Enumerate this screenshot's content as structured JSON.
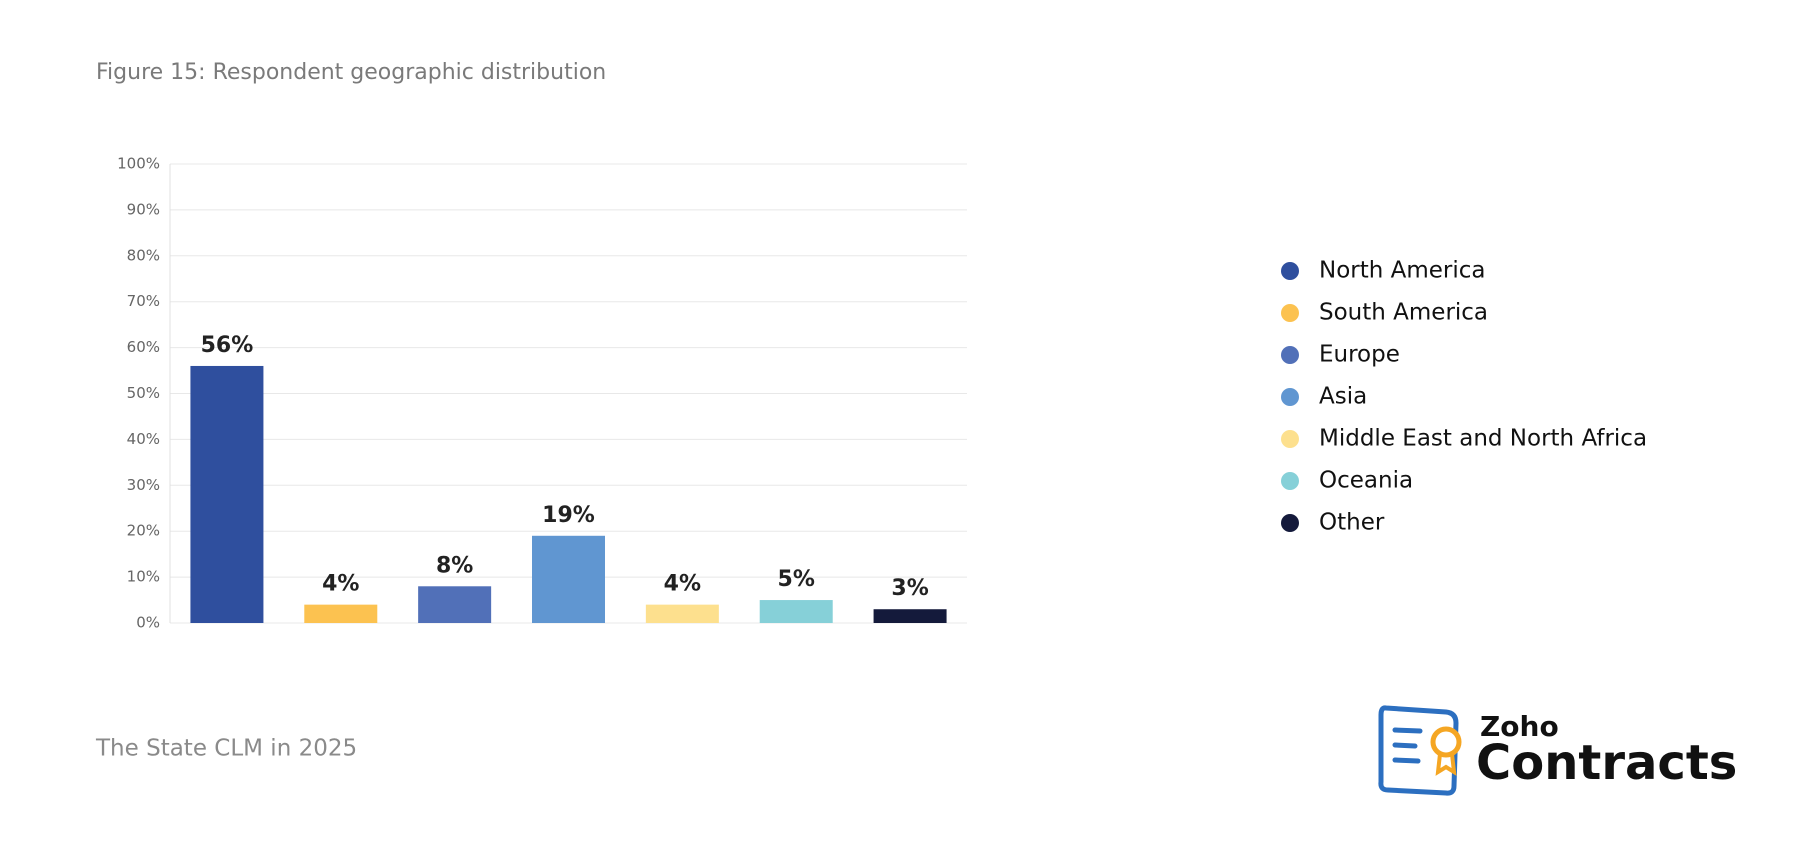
{
  "chart_data": {
    "type": "bar",
    "title": "Figure 15: Respondent geographic distribution",
    "categories": [
      "North America",
      "South America",
      "Europe",
      "Asia",
      "Middle East and North Africa",
      "Oceania",
      "Other"
    ],
    "values": [
      56,
      4,
      8,
      19,
      4,
      5,
      3
    ],
    "value_labels": [
      "56%",
      "4%",
      "8%",
      "19%",
      "4%",
      "5%",
      "3%"
    ],
    "colors": [
      "#2f4f9e",
      "#fcc250",
      "#5170b8",
      "#6096d1",
      "#fde08e",
      "#86d0d8",
      "#141a3b"
    ],
    "ylim": [
      0,
      100
    ],
    "yticks": [
      {
        "value": 0,
        "label": "0%"
      },
      {
        "value": 10,
        "label": "10%"
      },
      {
        "value": 20,
        "label": "20%"
      },
      {
        "value": 30,
        "label": "30%"
      },
      {
        "value": 40,
        "label": "40%"
      },
      {
        "value": 50,
        "label": "50%"
      },
      {
        "value": 60,
        "label": "60%"
      },
      {
        "value": 70,
        "label": "70%"
      },
      {
        "value": 80,
        "label": "80%"
      },
      {
        "value": 90,
        "label": "90%"
      },
      {
        "value": 100,
        "label": "100%"
      }
    ],
    "grid": true,
    "legend": "right"
  },
  "footer": "The State CLM in 2025",
  "logo": {
    "brand": "Zoho",
    "product": "Contracts"
  }
}
